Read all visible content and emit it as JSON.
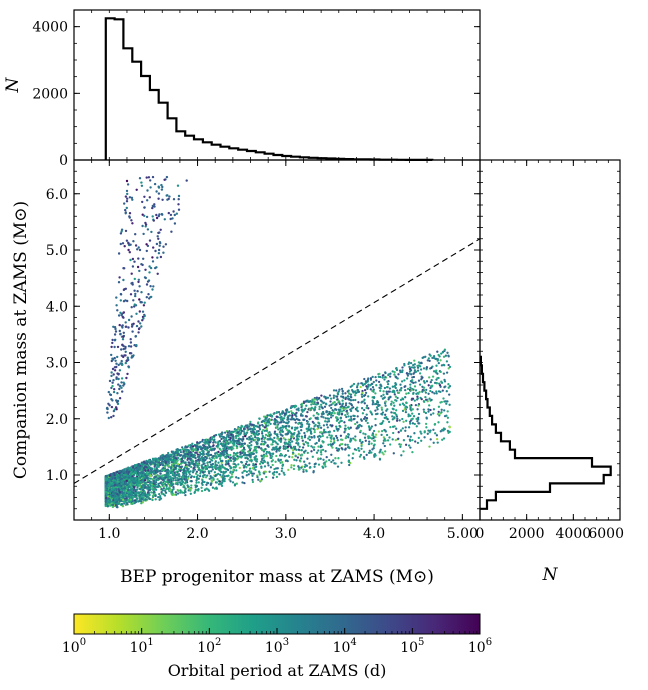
{
  "chart_data": [
    {
      "type": "scatter",
      "panel": "main",
      "xlabel": "BEP progenitor mass at ZAMS",
      "xunit": "(M⊙)",
      "ylabel": "Companion mass at ZAMS",
      "yunit": "(M⊙)",
      "xlim": [
        0.6,
        5.2
      ],
      "ylim": [
        0.2,
        6.6
      ],
      "xticks": [
        1.0,
        2.0,
        3.0,
        4.0,
        5.0
      ],
      "xtick_labels": [
        "1.0",
        "2.0",
        "3.0",
        "4.0",
        "5.00"
      ],
      "yticks": [
        1.0,
        2.0,
        3.0,
        4.0,
        5.0,
        6.0
      ],
      "ytick_labels": [
        "1.0",
        "2.0",
        "3.0",
        "4.0",
        "5.0",
        "6.0"
      ],
      "reference_line": {
        "style": "dashed",
        "x": [
          0.6,
          5.2
        ],
        "y": [
          0.85,
          5.2
        ]
      },
      "color_encoding": "orbital period at ZAMS (d), log scale",
      "point_clouds": [
        {
          "region": "upper branch",
          "x_range": [
            0.95,
            1.9
          ],
          "y_range": [
            2.0,
            6.3
          ],
          "log_period_range": [
            2.5,
            6
          ]
        },
        {
          "region": "main band",
          "x_range": [
            0.95,
            4.9
          ],
          "y_range": [
            0.45,
            3.3
          ],
          "log_period_range": [
            0,
            6
          ]
        }
      ]
    },
    {
      "type": "histogram",
      "panel": "top",
      "ylabel": "N",
      "ylim": [
        0,
        4500
      ],
      "yticks": [
        0,
        2000,
        4000
      ],
      "ytick_labels": [
        "0",
        "2000",
        "4000"
      ],
      "bin_edges": [
        0.96,
        1.06,
        1.16,
        1.26,
        1.36,
        1.46,
        1.56,
        1.66,
        1.76,
        1.86,
        1.96,
        2.06,
        2.16,
        2.26,
        2.36,
        2.46,
        2.56,
        2.66,
        2.76,
        2.86,
        2.96,
        3.06,
        3.16,
        3.26,
        3.36,
        3.46,
        3.56,
        3.66,
        3.76,
        3.86,
        3.96,
        4.06,
        4.16,
        4.26,
        4.36,
        4.46,
        4.56,
        4.66
      ],
      "counts": [
        4250,
        4220,
        3350,
        2950,
        2520,
        2100,
        1720,
        1250,
        860,
        730,
        620,
        530,
        460,
        400,
        350,
        310,
        270,
        230,
        190,
        150,
        120,
        100,
        80,
        65,
        55,
        45,
        35,
        28,
        22,
        18,
        14,
        10,
        8,
        6,
        4,
        3,
        2
      ]
    },
    {
      "type": "histogram",
      "panel": "right",
      "orientation": "horizontal",
      "xlabel": "N",
      "xlim": [
        0,
        6000
      ],
      "xticks": [
        0,
        2000,
        4000,
        6000
      ],
      "xtick_labels": [
        "0",
        "2000",
        "4000",
        "6000"
      ],
      "bin_edges": [
        0.4,
        0.55,
        0.7,
        0.85,
        1.0,
        1.15,
        1.3,
        1.45,
        1.6,
        1.75,
        1.9,
        2.05,
        2.2,
        2.35,
        2.5,
        2.65,
        2.8,
        2.95,
        3.1
      ],
      "counts": [
        300,
        680,
        3000,
        5300,
        5600,
        4800,
        1500,
        1280,
        900,
        680,
        520,
        420,
        320,
        260,
        190,
        130,
        80,
        40
      ]
    },
    {
      "type": "colorbar",
      "label": "Orbital period at ZAMS (d)",
      "scale": "log",
      "range": [
        1,
        1000000
      ],
      "tick_values": [
        1,
        10,
        100,
        1000,
        10000,
        100000,
        1000000
      ],
      "tick_labels": [
        {
          "base": "10",
          "exp": "0"
        },
        {
          "base": "10",
          "exp": "1"
        },
        {
          "base": "10",
          "exp": "2"
        },
        {
          "base": "10",
          "exp": "3"
        },
        {
          "base": "10",
          "exp": "4"
        },
        {
          "base": "10",
          "exp": "5"
        },
        {
          "base": "10",
          "exp": "6"
        }
      ],
      "colormap": "viridis_r",
      "stops": [
        "#fde725",
        "#b5de2b",
        "#6ece58",
        "#35b779",
        "#1f9e89",
        "#26828e",
        "#31688e",
        "#3e4989",
        "#482878",
        "#440154"
      ]
    }
  ]
}
